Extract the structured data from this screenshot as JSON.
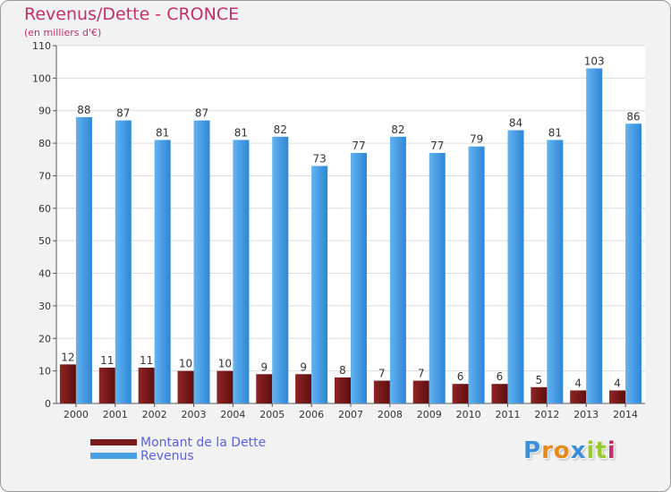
{
  "header": {
    "title": "Revenus/Dette - CRONCE",
    "subtitle": "(en milliers d'€)"
  },
  "chart_data": {
    "type": "bar",
    "categories": [
      "2000",
      "2001",
      "2002",
      "2003",
      "2004",
      "2005",
      "2006",
      "2007",
      "2008",
      "2009",
      "2010",
      "2011",
      "2012",
      "2013",
      "2014"
    ],
    "series": [
      {
        "name": "Montant de la Dette",
        "values": [
          12,
          11,
          11,
          10,
          10,
          9,
          9,
          8,
          7,
          7,
          6,
          6,
          5,
          4,
          4
        ],
        "color": "#7a1a1a"
      },
      {
        "name": "Revenus",
        "values": [
          88,
          87,
          81,
          87,
          81,
          82,
          73,
          77,
          82,
          77,
          79,
          84,
          81,
          103,
          86
        ],
        "color": "#4aa0e6"
      }
    ],
    "ylim": [
      0,
      110
    ],
    "yticks": [
      0,
      10,
      20,
      30,
      40,
      50,
      60,
      70,
      80,
      90,
      100,
      110
    ],
    "grid": true,
    "legend": "bottom-left"
  },
  "legend": {
    "items": [
      {
        "label": "Montant de la Dette",
        "color": "#7a1a1a"
      },
      {
        "label": "Revenus",
        "color": "#4aa0e6"
      }
    ]
  },
  "logo": {
    "letters": [
      "P",
      "r",
      "o",
      "x",
      "i",
      "t",
      "i"
    ],
    "colors": [
      "#3a8fd8",
      "#e88a1a",
      "#e88a1a",
      "#3a8fd8",
      "#9acb2e",
      "#9acb2e",
      "#c0306a"
    ]
  }
}
